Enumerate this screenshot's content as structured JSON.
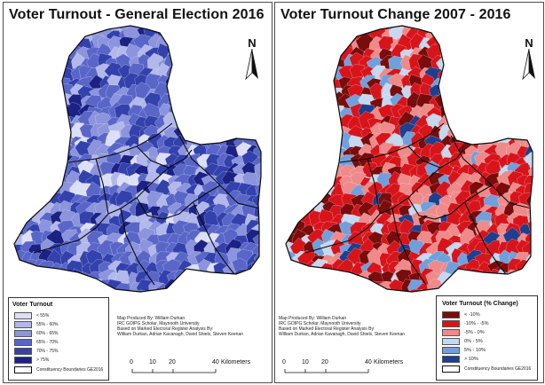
{
  "left_panel": {
    "title": "Voter Turnout - General Election 2016",
    "north": "N",
    "legend": {
      "title": "Voter Turnout",
      "items": [
        {
          "label": "< 55%",
          "color": "#dcdff7"
        },
        {
          "label": "55% - 60%",
          "color": "#b2b8ea"
        },
        {
          "label": "60% - 65%",
          "color": "#8b94dc"
        },
        {
          "label": "65% - 70%",
          "color": "#5966c8"
        },
        {
          "label": "70% - 75%",
          "color": "#3341ad"
        },
        {
          "label": "> 75%",
          "color": "#1b2284"
        }
      ],
      "boundary_label": "Constituency Boundaries GE2016"
    },
    "credits": [
      "Map Produced By: William Durkan",
      "IRC GOIPG Scholar, Maynooth University",
      "Based on Marked Electoral Register Analysis By:",
      "William Durkan, Adrian Kavanagh, David Shiels, Steven Keenan"
    ],
    "scale": {
      "ticks": [
        "0",
        "10",
        "20",
        "40"
      ],
      "unit": "Kilometers"
    }
  },
  "right_panel": {
    "title": "Voter Turnout Change 2007 - 2016",
    "north": "N",
    "legend": {
      "title": "Voter Turnout (% Change)",
      "items": [
        {
          "label": "< -10%",
          "color": "#7a0c0c"
        },
        {
          "label": "-10% - -5%",
          "color": "#d8141b"
        },
        {
          "label": "-5% - 0%",
          "color": "#ee8a8a"
        },
        {
          "label": "0% - 5%",
          "color": "#c6d8f0"
        },
        {
          "label": "5% - 10%",
          "color": "#6fa0dc"
        },
        {
          "label": "> 10%",
          "color": "#1c3f8f"
        }
      ],
      "boundary_label": "Constituency Boundaries GE2016"
    },
    "credits": [
      "Map Produced By: William Durkan",
      "IRC GOIPG Scholar, Maynooth University",
      "Based on Marked Electoral Register Analysis By:",
      "William Durkan, Adrian Kavanagh, David Shiels, Steven Keenan"
    ],
    "scale": {
      "ticks": [
        "0",
        "10",
        "20",
        "40"
      ],
      "unit": "Kilometers"
    }
  }
}
